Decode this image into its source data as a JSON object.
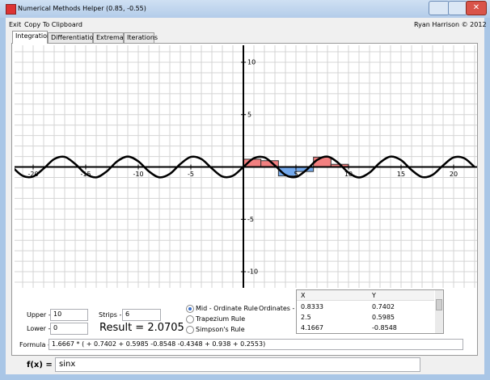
{
  "window": {
    "title": "Numerical Methods Helper (0.85, -0.55)"
  },
  "menu": {
    "items": [
      "Exit",
      "Copy To Clipboard"
    ],
    "credit": "Ryan Harrison © 2012"
  },
  "tabs": {
    "items": [
      "Integration",
      "Differentiation",
      "Extrema",
      "Iterations"
    ],
    "active": 0
  },
  "chart_data": {
    "type": "line",
    "xlim": [
      -21.77,
      22.23
    ],
    "ylim": [
      -11.54,
      11.62
    ],
    "xticks": [
      -20,
      -15,
      -10,
      -5,
      5,
      10,
      15,
      20
    ],
    "yticks": [
      10,
      5,
      -5,
      -10
    ],
    "grid": true,
    "grid_step": 1,
    "x": [
      -22,
      -21,
      -20,
      -19,
      -18,
      -17,
      -16,
      -15,
      -14,
      -13,
      -12,
      -11,
      -10,
      -9,
      -8,
      -7,
      -6,
      -5,
      -4,
      -3,
      -2,
      -1,
      0,
      1,
      2,
      3,
      4,
      5,
      6,
      7,
      8,
      9,
      10,
      11,
      12,
      13,
      14,
      15,
      16,
      17,
      18,
      19,
      20,
      21,
      22
    ],
    "values": [
      0.01,
      -0.84,
      -0.91,
      -0.15,
      0.75,
      0.96,
      0.29,
      -0.65,
      -0.99,
      -0.42,
      0.54,
      1,
      0.54,
      -0.41,
      -0.99,
      -0.66,
      0.28,
      0.96,
      0.76,
      -0.14,
      -0.91,
      -0.84,
      0,
      0.84,
      0.91,
      0.14,
      -0.76,
      -0.96,
      -0.28,
      0.66,
      0.99,
      0.41,
      -0.54,
      -1,
      -0.54,
      0.42,
      0.99,
      0.65,
      -0.29,
      -0.96,
      -0.75,
      0.15,
      0.91,
      0.84,
      -0.01
    ],
    "color": "#000000",
    "strips": {
      "bins": [
        0,
        1.6667,
        3.3333,
        5,
        6.6667,
        8.3333,
        10
      ],
      "values": [
        0.7402,
        0.5985,
        -0.8548,
        -0.4348,
        0.938,
        0.2553
      ],
      "positive_color": "#f28080",
      "negative_color": "#74a9ec"
    }
  },
  "form": {
    "upper_label": "Upper -",
    "upper": "10",
    "lower_label": "Lower -",
    "lower": "0",
    "strips_label": "Strips -",
    "strips": "6",
    "result": "Result = 2.0705",
    "methods": [
      "Mid - Ordinate Rule",
      "Trapezium Rule",
      "Simpson's Rule"
    ],
    "selected": 0,
    "ordinates_label": "Ordinates -",
    "table": {
      "columns": [
        "X",
        "Y"
      ],
      "rows": [
        [
          "0.8333",
          "0.7402"
        ],
        [
          "2.5",
          "0.5985"
        ],
        [
          "4.1667",
          "-0.8548"
        ]
      ]
    },
    "formula_label": "Formula -",
    "formula": "1.6667 * ( + 0.7402 + 0.5985 -0.8548 -0.4348 + 0.938 + 0.2553)",
    "fx_label": "f(x) =",
    "fx": "sinx"
  }
}
